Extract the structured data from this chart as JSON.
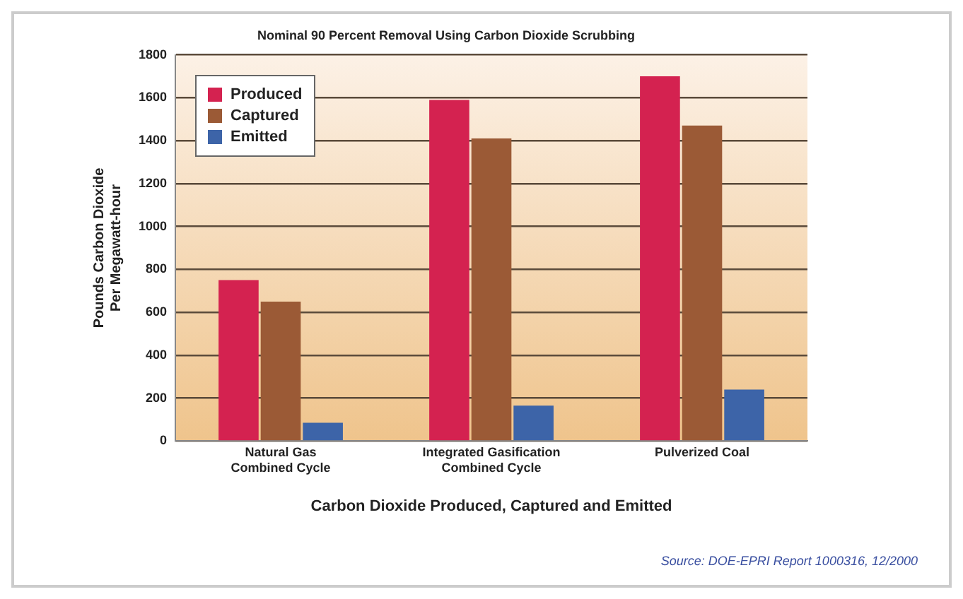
{
  "chart_data": {
    "type": "bar",
    "title": "Nominal 90 Percent Removal Using Carbon Dioxide Scrubbing",
    "xlabel": "Carbon Dioxide Produced, Captured and Emitted",
    "ylabel": "Pounds Carbon Dioxide Per Megawatt-hour",
    "categories": [
      "Natural Gas Combined Cycle",
      "Integrated Gasification Combined Cycle",
      "Pulverized Coal"
    ],
    "series": [
      {
        "name": "Produced",
        "color": "#d42250",
        "values": [
          750,
          1590,
          1700
        ]
      },
      {
        "name": "Captured",
        "color": "#9b5a36",
        "values": [
          650,
          1410,
          1470
        ]
      },
      {
        "name": "Emitted",
        "color": "#3d64a8",
        "values": [
          85,
          165,
          240
        ]
      }
    ],
    "ylim": [
      0,
      1800
    ],
    "yticks": [
      0,
      200,
      400,
      600,
      800,
      1000,
      1200,
      1400,
      1600,
      1800
    ],
    "grid": "y",
    "legend": "top left",
    "annotations": [
      "Source: DOE-EPRI Report 1000316, 12/2000"
    ]
  }
}
